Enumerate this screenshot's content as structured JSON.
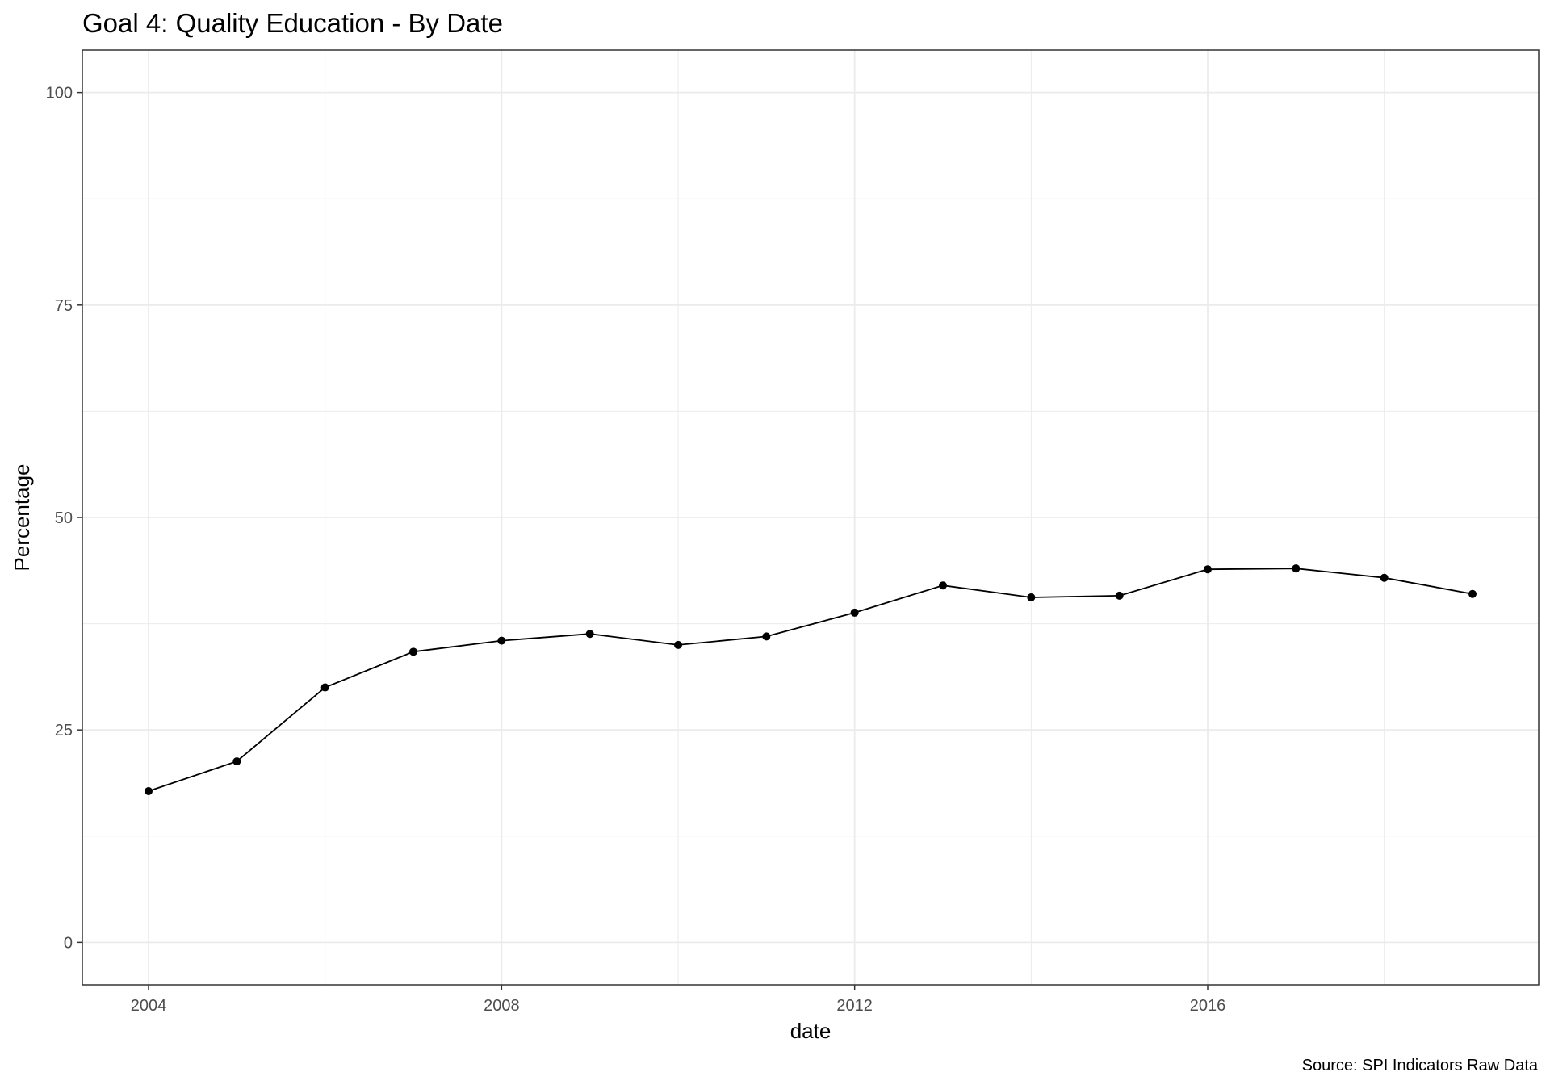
{
  "chart_data": {
    "type": "line",
    "title": "Goal 4: Quality Education - By Date",
    "xlabel": "date",
    "ylabel": "Percentage",
    "caption": "Source: SPI Indicators Raw Data",
    "x": [
      2004,
      2005,
      2006,
      2007,
      2008,
      2009,
      2010,
      2011,
      2012,
      2013,
      2014,
      2015,
      2016,
      2017,
      2018,
      2019
    ],
    "series": [
      {
        "values": [
          17.8,
          21.3,
          30.0,
          34.2,
          35.5,
          36.3,
          35.0,
          36.0,
          38.8,
          42.0,
          40.6,
          40.8,
          43.9,
          44.0,
          42.9,
          41.0
        ]
      }
    ],
    "xlim": [
      2003.25,
      2019.75
    ],
    "ylim": [
      -5,
      105
    ],
    "x_ticks": [
      2004,
      2008,
      2012,
      2016
    ],
    "x_tick_labels": [
      "2004",
      "2008",
      "2012",
      "2016"
    ],
    "y_ticks": [
      0,
      25,
      50,
      75,
      100
    ],
    "y_tick_labels": [
      "0",
      "25",
      "50",
      "75",
      "100"
    ],
    "grid": true,
    "legend": "none",
    "colors": {
      "line": "#000000",
      "grid": "#ebebeb",
      "panel_border": "#333333",
      "tick_text": "#4d4d4d"
    }
  }
}
